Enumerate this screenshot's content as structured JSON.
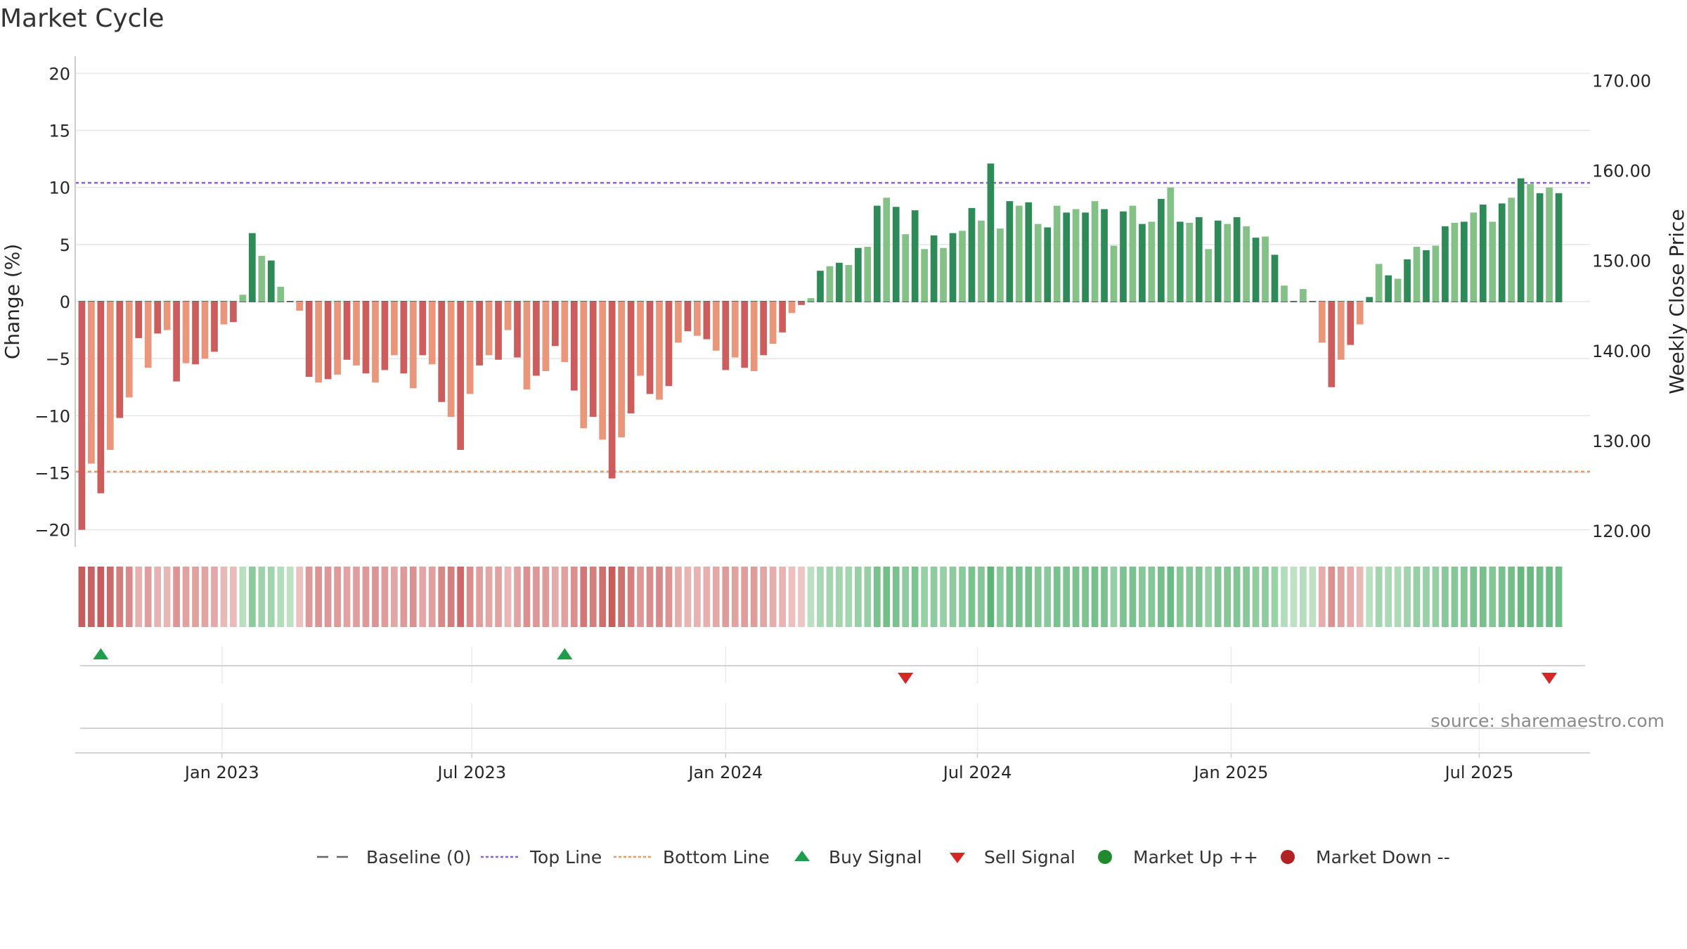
{
  "chart_data": {
    "type": "bar",
    "title": "Market Cycle",
    "ylabel": "Change (%)",
    "y2label": "Weekly Close Price",
    "ylim": [
      -21.5,
      21.5
    ],
    "y2lim": [
      118.2,
      172.7
    ],
    "yticks": [
      -20,
      -15,
      -10,
      -5,
      0,
      5,
      10,
      15,
      20
    ],
    "yticklabels": [
      "−20",
      "−15",
      "−10",
      "−5",
      "0",
      "5",
      "10",
      "15",
      "20"
    ],
    "y2ticks": [
      120,
      130,
      140,
      150,
      160,
      170
    ],
    "y2ticklabels": [
      "120.00",
      "130.00",
      "140.00",
      "150.00",
      "160.00",
      "170.00"
    ],
    "xrange_week": [
      -0.7,
      159.3
    ],
    "xticks": [
      {
        "label": "Jan 2023",
        "week": 14.8
      },
      {
        "label": "Jul 2023",
        "week": 41.2
      },
      {
        "label": "Jan 2024",
        "week": 68.0
      },
      {
        "label": "Jul 2024",
        "week": 94.6
      },
      {
        "label": "Jan 2025",
        "week": 121.4
      },
      {
        "label": "Jul 2025",
        "week": 147.6
      }
    ],
    "top_line": 10.4,
    "bottom_line": -14.9,
    "baseline": 0,
    "changes": [
      -20,
      -14.2,
      -16.8,
      -13,
      -10.2,
      -8.4,
      -3.2,
      -5.8,
      -2.8,
      -2.5,
      -7,
      -5.4,
      -5.5,
      -5,
      -4.4,
      -2,
      -1.8,
      0.6,
      6,
      4,
      3.6,
      1.3,
      0,
      -0.8,
      -6.6,
      -7.1,
      -6.8,
      -6.4,
      -5.1,
      -5.6,
      -6.3,
      -7.1,
      -6,
      -4.7,
      -6.3,
      -7.6,
      -4.7,
      -5.5,
      -8.8,
      -10.1,
      -13,
      -8.1,
      -5.6,
      -4.7,
      -5.1,
      -2.5,
      -4.9,
      -7.7,
      -6.5,
      -6.1,
      -3.9,
      -5.3,
      -7.8,
      -11.1,
      -10.1,
      -12.1,
      -15.5,
      -11.9,
      -9.8,
      -6.5,
      -8.1,
      -8.6,
      -7.4,
      -3.6,
      -2.6,
      -3,
      -3.3,
      -4.3,
      -6,
      -4.9,
      -5.8,
      -6.1,
      -4.7,
      -3.7,
      -2.7,
      -1,
      -0.3,
      0.3,
      2.7,
      3.1,
      3.4,
      3.2,
      4.7,
      4.8,
      8.4,
      9.1,
      8.3,
      5.9,
      8,
      4.6,
      5.8,
      4.7,
      6,
      6.2,
      8.2,
      7.1,
      12.1,
      6.4,
      8.8,
      8.4,
      8.7,
      6.8,
      6.5,
      8.4,
      7.8,
      8.1,
      7.8,
      8.8,
      8.1,
      4.9,
      7.9,
      8.4,
      6.8,
      7,
      9,
      10,
      7,
      6.9,
      7.4,
      4.6,
      7.1,
      6.8,
      7.4,
      6.6,
      5.6,
      5.7,
      4.1,
      1.4,
      0,
      1.1,
      0,
      -3.6,
      -7.5,
      -5.1,
      -3.8,
      -2,
      0.4,
      3.3,
      2.3,
      2,
      3.7,
      4.8,
      4.5,
      4.9,
      6.6,
      6.9,
      7,
      7.8,
      8.5,
      7,
      8.6,
      9.1,
      10.8,
      10.3,
      9.5,
      10,
      9.5
    ],
    "tone_pattern": "-sharp,light",
    "strip_min": -15,
    "strip_max": 12,
    "buy_signals": [
      {
        "week": 2
      },
      {
        "week": 51
      }
    ],
    "sell_signals": [
      {
        "week": 87
      },
      {
        "week": 155
      }
    ],
    "legend": [
      {
        "label": "Baseline (0)",
        "symbol": "dash",
        "color": "#666666"
      },
      {
        "label": "Top Line",
        "symbol": "dotted",
        "color": "#8b5fd6"
      },
      {
        "label": "Bottom Line",
        "symbol": "dotted",
        "color": "#ec9a5b"
      },
      {
        "label": "Buy Signal",
        "symbol": "triangle-up",
        "color": "#1e9e4a"
      },
      {
        "label": "Sell Signal",
        "symbol": "triangle-down",
        "color": "#d62728"
      },
      {
        "label": "Market Up ++",
        "symbol": "circle",
        "color": "#1f8a2e"
      },
      {
        "label": "Market Down --",
        "symbol": "circle",
        "color": "#b22222"
      }
    ],
    "colors": {
      "pos_dark": "#2e8b57",
      "pos_light": "#84c187",
      "neg_dark": "#cd5c5c",
      "neg_light": "#e9967a",
      "top_line": "#8b5fd6",
      "bottom_line": "#ec9a5b",
      "buy": "#1e9e4a",
      "sell": "#d62728",
      "grid": "#e6e6e6",
      "axis": "#cccccc"
    },
    "source": "source: sharemaestro.com"
  }
}
